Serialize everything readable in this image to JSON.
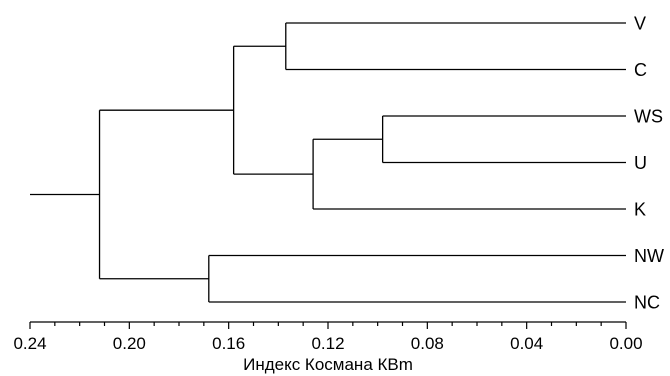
{
  "chart_data": {
    "type": "dendrogram",
    "orientation": "leaves-right",
    "xlabel": "Индекс Космана КВm",
    "xlim": [
      0.24,
      0.0
    ],
    "x_ticks": [
      {
        "value": 0.24,
        "label": "0.24"
      },
      {
        "value": 0.2,
        "label": "0.20"
      },
      {
        "value": 0.16,
        "label": "0.16"
      },
      {
        "value": 0.12,
        "label": "0.12"
      },
      {
        "value": 0.08,
        "label": "0.08"
      },
      {
        "value": 0.04,
        "label": "0.04"
      },
      {
        "value": 0.0,
        "label": "0.00"
      }
    ],
    "minor_tick_step": 0.01,
    "leaves": [
      "V",
      "C",
      "WS",
      "U",
      "K",
      "NW",
      "NC"
    ],
    "merges": [
      {
        "children": [
          "WS",
          "U"
        ],
        "height": 0.098
      },
      {
        "children": [
          "V",
          "C"
        ],
        "height": 0.137
      },
      {
        "children": [
          [
            "WS",
            "U"
          ],
          "K"
        ],
        "height": 0.126
      },
      {
        "children": [
          [
            "V",
            "C"
          ],
          [
            [
              "WS",
              "U"
            ],
            "K"
          ]
        ],
        "height": 0.158
      },
      {
        "children": [
          "NW",
          "NC"
        ],
        "height": 0.168
      },
      {
        "children": [
          [
            [
              "V",
              "C"
            ],
            [
              [
                "WS",
                "U"
              ],
              "K"
            ]
          ],
          [
            "NW",
            "NC"
          ]
        ],
        "height": 0.212
      }
    ],
    "root_stub_from": 0.24
  }
}
